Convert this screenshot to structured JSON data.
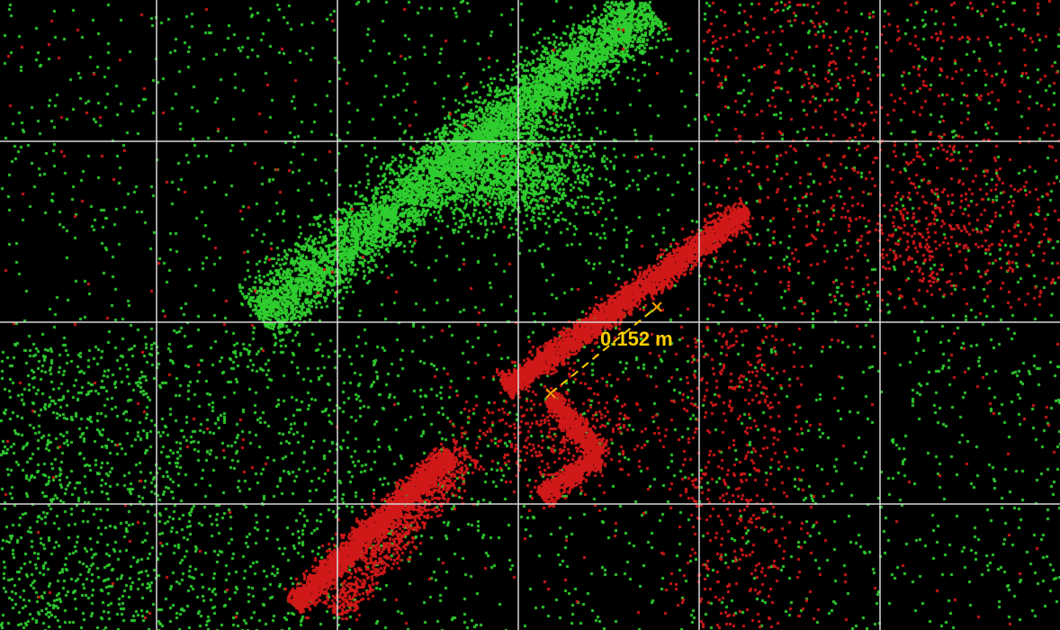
{
  "viewer": {
    "background_color": "#000000",
    "grid": {
      "visible": true,
      "color": "#d8d8d8",
      "columns": 6,
      "rows": 4
    },
    "point_colors": {
      "ground": "#2ecc2e",
      "object": "#d01818"
    }
  },
  "measurement": {
    "label": "0.152 m",
    "line_color": "#ffd000",
    "marker_color": "#ff9a00",
    "label_color": "#ffd000"
  }
}
